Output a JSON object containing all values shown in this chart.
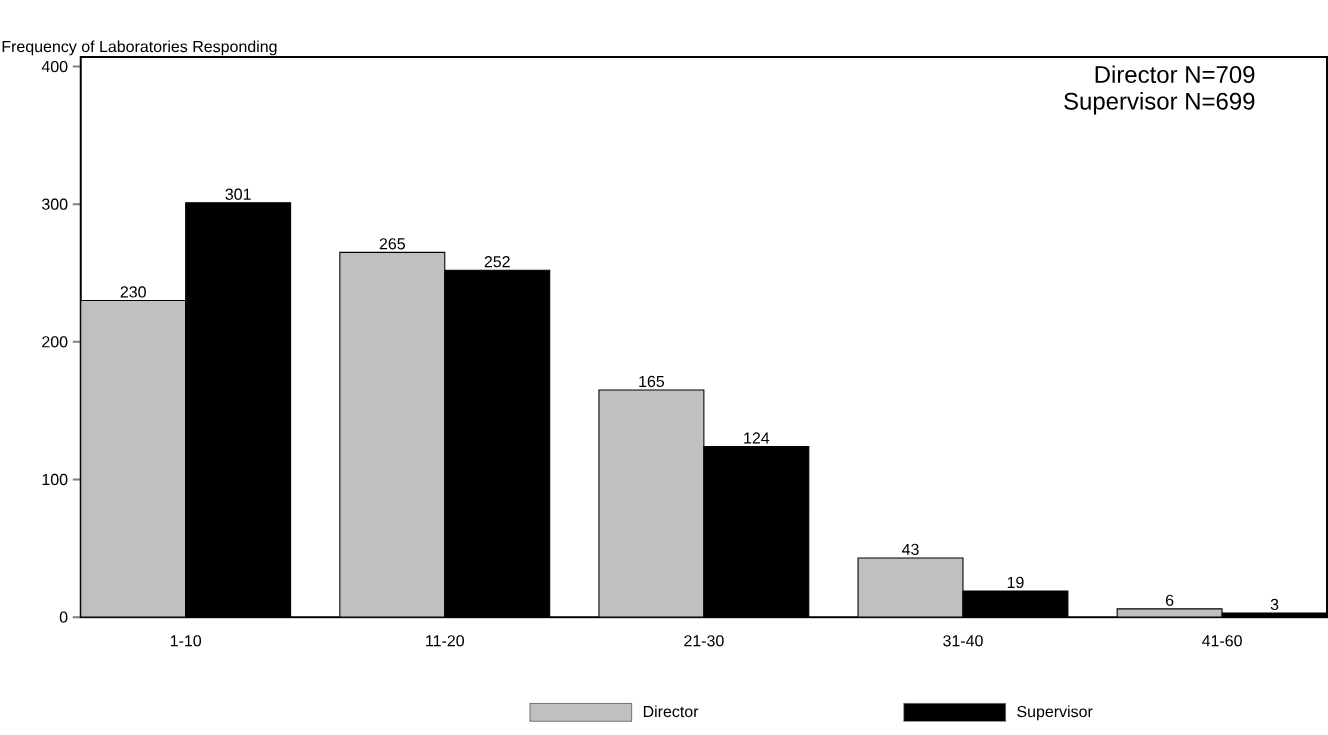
{
  "chart_data": {
    "type": "bar",
    "ylabel": "Frequency of Laboratories Responding",
    "annotations": [
      "Director N=709",
      "Supervisor N=699"
    ],
    "categories": [
      "1-10",
      "11-20",
      "21-30",
      "31-40",
      "41-60"
    ],
    "series": [
      {
        "name": "Director",
        "color": "#c0c0c0",
        "values": [
          230,
          265,
          165,
          43,
          6
        ]
      },
      {
        "name": "Supervisor",
        "color": "#000000",
        "values": [
          301,
          252,
          124,
          19,
          3
        ]
      }
    ],
    "ylim": [
      0,
      407
    ],
    "yticks": [
      0,
      100,
      200,
      300,
      400
    ],
    "data_labels": true,
    "legend": "bottom",
    "grid": false
  }
}
